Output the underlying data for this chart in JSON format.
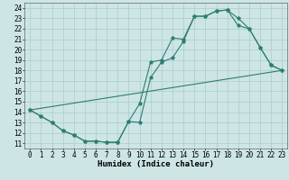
{
  "xlabel": "Humidex (Indice chaleur)",
  "xlim": [
    -0.5,
    23.5
  ],
  "ylim": [
    10.5,
    24.5
  ],
  "yticks": [
    11,
    12,
    13,
    14,
    15,
    16,
    17,
    18,
    19,
    20,
    21,
    22,
    23,
    24
  ],
  "xticks": [
    0,
    1,
    2,
    3,
    4,
    5,
    6,
    7,
    8,
    9,
    10,
    11,
    12,
    13,
    14,
    15,
    16,
    17,
    18,
    19,
    20,
    21,
    22,
    23
  ],
  "bg_color": "#cde5e5",
  "line_color": "#2e7d72",
  "grid_color": "#aacccc",
  "line1_x": [
    0,
    1,
    2,
    3,
    4,
    5,
    6,
    7,
    8,
    9,
    10,
    11,
    12,
    13,
    14,
    15,
    16,
    17,
    18,
    19,
    20,
    21,
    22,
    23
  ],
  "line1_y": [
    14.2,
    13.6,
    13.0,
    12.2,
    11.8,
    11.2,
    11.2,
    11.1,
    11.1,
    13.1,
    13.0,
    17.3,
    18.8,
    19.2,
    20.8,
    23.2,
    23.2,
    23.7,
    23.8,
    22.3,
    22.0,
    20.2,
    18.5,
    18.0
  ],
  "line2_x": [
    0,
    1,
    2,
    3,
    4,
    5,
    6,
    7,
    8,
    9,
    10,
    11,
    12,
    13,
    14,
    15,
    16,
    17,
    18,
    19,
    20,
    21,
    22,
    23
  ],
  "line2_y": [
    14.2,
    13.6,
    13.0,
    12.2,
    11.8,
    11.2,
    11.2,
    11.1,
    11.1,
    13.1,
    14.8,
    18.8,
    19.0,
    21.1,
    21.0,
    23.2,
    23.2,
    23.7,
    23.8,
    23.0,
    22.0,
    20.2,
    18.5,
    18.0
  ],
  "line3_x": [
    0,
    23
  ],
  "line3_y": [
    14.2,
    18.0
  ],
  "tick_fontsize": 5.5,
  "xlabel_fontsize": 6.5
}
